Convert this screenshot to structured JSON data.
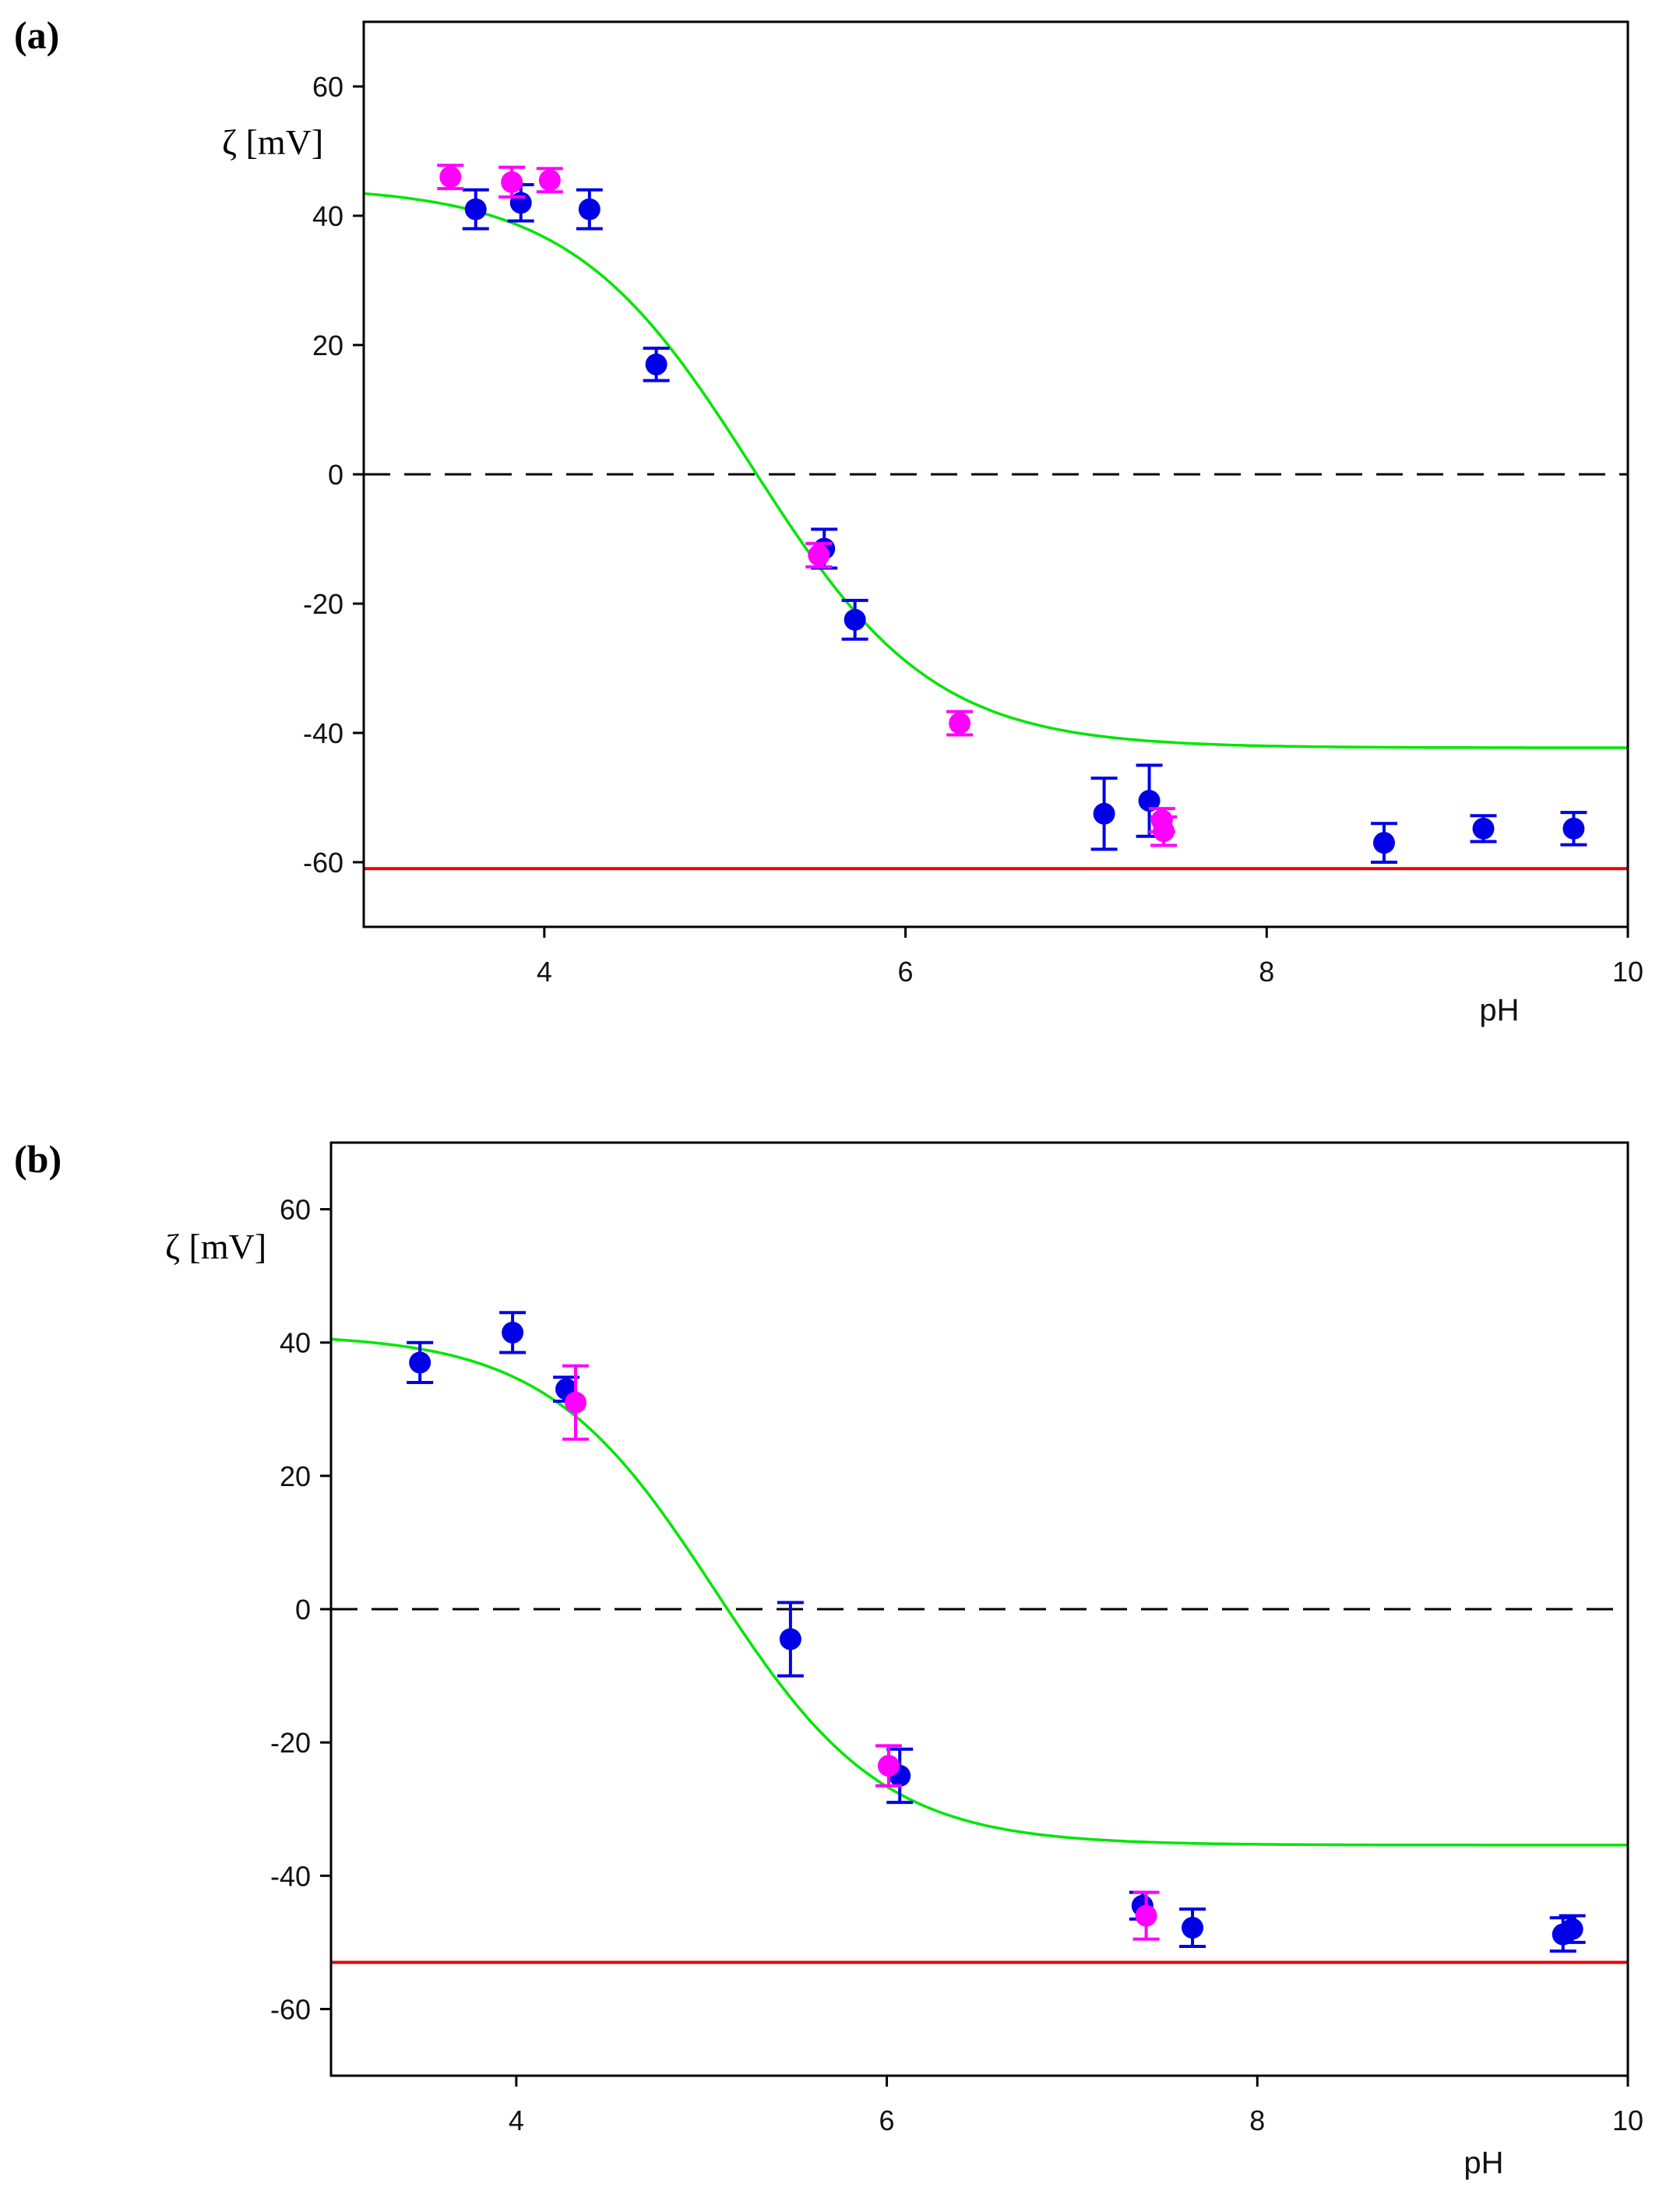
{
  "figure": {
    "panels": [
      "(a)",
      "(b)"
    ]
  },
  "chart_data": [
    {
      "type": "scatter",
      "panel_label": "(a)",
      "title": "",
      "xlabel": "pH",
      "ylabel": "ζ [mV]",
      "xlim": [
        3,
        10
      ],
      "ylim": [
        -70,
        70
      ],
      "xticks": [
        4,
        6,
        8,
        10
      ],
      "yticks": [
        60,
        40,
        20,
        0,
        -20,
        -40,
        -60
      ],
      "grid": false,
      "reference_lines": [
        {
          "name": "zero-line",
          "y": 0,
          "style": "dashed",
          "color": "#000000"
        },
        {
          "name": "red-line",
          "y": -61,
          "style": "solid",
          "color": "#e8000b"
        }
      ],
      "fit_curve": {
        "name": "fit",
        "color": "#00e600",
        "upper": 44.6,
        "lower": -42.3,
        "pH50": 5.15,
        "slope": 2.0,
        "x_range": [
          3,
          10
        ]
      },
      "series": [
        {
          "name": "blue",
          "color": "#0000e6",
          "points": [
            {
              "x": 3.62,
              "y": 41.0,
              "err": 3.0
            },
            {
              "x": 3.87,
              "y": 42.0,
              "err": 2.8
            },
            {
              "x": 4.25,
              "y": 41.0,
              "err": 3.0
            },
            {
              "x": 4.62,
              "y": 17.0,
              "err": 2.5
            },
            {
              "x": 5.55,
              "y": -11.5,
              "err": 3.0
            },
            {
              "x": 5.72,
              "y": -22.5,
              "err": 3.0
            },
            {
              "x": 7.1,
              "y": -52.5,
              "err": 5.5
            },
            {
              "x": 7.35,
              "y": -50.5,
              "err": 5.5
            },
            {
              "x": 8.65,
              "y": -57.0,
              "err": 3.0
            },
            {
              "x": 9.2,
              "y": -54.8,
              "err": 2.0
            },
            {
              "x": 9.7,
              "y": -54.8,
              "err": 2.5
            }
          ]
        },
        {
          "name": "magenta",
          "color": "#ff00ff",
          "points": [
            {
              "x": 3.48,
              "y": 46.0,
              "err": 1.8
            },
            {
              "x": 3.82,
              "y": 45.2,
              "err": 2.3
            },
            {
              "x": 4.03,
              "y": 45.5,
              "err": 1.8
            },
            {
              "x": 5.52,
              "y": -12.5,
              "err": 1.8
            },
            {
              "x": 6.3,
              "y": -38.5,
              "err": 1.8
            },
            {
              "x": 7.42,
              "y": -53.5,
              "err": 1.8
            },
            {
              "x": 7.43,
              "y": -55.2,
              "err": 2.2
            }
          ]
        }
      ]
    },
    {
      "type": "scatter",
      "panel_label": "(b)",
      "title": "",
      "xlabel": "pH",
      "ylabel": "ζ [mV]",
      "xlim": [
        3,
        10
      ],
      "ylim": [
        -70,
        70
      ],
      "xticks": [
        4,
        6,
        8,
        10
      ],
      "yticks": [
        60,
        40,
        20,
        0,
        -20,
        -40,
        -60
      ],
      "grid": false,
      "reference_lines": [
        {
          "name": "zero-line",
          "y": 0,
          "style": "dashed",
          "color": "#000000"
        },
        {
          "name": "red-line",
          "y": -53,
          "style": "solid",
          "color": "#e8000b"
        }
      ],
      "fit_curve": {
        "name": "fit",
        "color": "#00e600",
        "upper": 41.3,
        "lower": -35.4,
        "pH50": 5.07,
        "slope": 2.2,
        "x_range": [
          3,
          10
        ]
      },
      "series": [
        {
          "name": "blue",
          "color": "#0000e6",
          "points": [
            {
              "x": 3.48,
              "y": 37.0,
              "err": 3.0
            },
            {
              "x": 3.98,
              "y": 41.5,
              "err": 3.0
            },
            {
              "x": 4.27,
              "y": 33.0,
              "err": 1.8
            },
            {
              "x": 5.48,
              "y": -4.5,
              "err": 5.5
            },
            {
              "x": 6.07,
              "y": -25.0,
              "err": 4.0
            },
            {
              "x": 7.38,
              "y": -44.5,
              "err": 2.0
            },
            {
              "x": 7.65,
              "y": -47.8,
              "err": 2.8
            },
            {
              "x": 9.65,
              "y": -48.8,
              "err": 2.5
            },
            {
              "x": 9.7,
              "y": -48.0,
              "err": 2.0
            }
          ]
        },
        {
          "name": "magenta",
          "color": "#ff00ff",
          "points": [
            {
              "x": 4.32,
              "y": 31.0,
              "err": 5.5
            },
            {
              "x": 6.01,
              "y": -23.5,
              "err": 3.0
            },
            {
              "x": 7.4,
              "y": -46.0,
              "err": 3.5
            }
          ]
        }
      ]
    }
  ]
}
